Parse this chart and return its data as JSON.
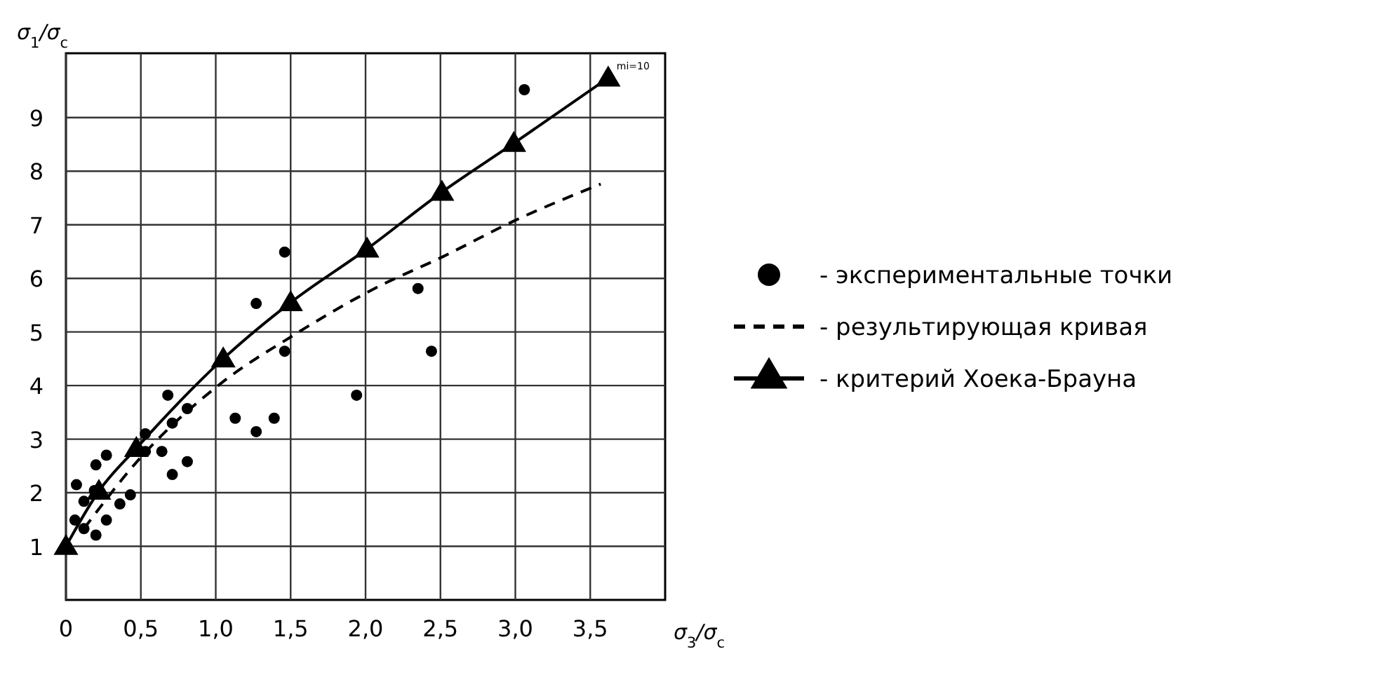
{
  "chart_data": {
    "type": "scatter",
    "xlabel": "σ$_{3}$/σ$_{c}$",
    "ylabel": "σ$_{1}$/σ$_{c}$",
    "xlim": [
      0,
      4.0
    ],
    "ylim": [
      0,
      10.2
    ],
    "xticks": [
      0,
      {
        "value": 0.5,
        "label": "0,5"
      },
      {
        "value": 1.0,
        "label": "1,0"
      },
      {
        "value": 1.5,
        "label": "1,5"
      },
      {
        "value": 2.0,
        "label": "2,0"
      },
      {
        "value": 2.5,
        "label": "2,5"
      },
      {
        "value": 3.0,
        "label": "3,0"
      },
      {
        "value": 3.5,
        "label": "3,5"
      }
    ],
    "yticks": [
      1,
      2,
      3,
      4,
      5,
      6,
      7,
      8,
      9
    ],
    "grid": true,
    "legend": "right",
    "series": [
      {
        "name": "- экспериментальные точки",
        "marker": "circle",
        "color": "#000000",
        "x": [
          0.07,
          0.12,
          0.06,
          0.12,
          0.2,
          0.27,
          0.19,
          0.2,
          0.27,
          0.36,
          0.43,
          0.53,
          0.53,
          0.64,
          0.68,
          0.71,
          0.71,
          0.81,
          0.81,
          1.13,
          1.27,
          1.39,
          1.46,
          1.94,
          2.44,
          1.46,
          1.27,
          2.35,
          3.06
        ],
        "values": [
          2.15,
          1.84,
          1.49,
          1.33,
          2.52,
          2.7,
          2.04,
          1.21,
          1.49,
          1.79,
          1.96,
          3.1,
          2.77,
          2.77,
          3.82,
          3.3,
          2.34,
          3.57,
          2.58,
          3.39,
          3.14,
          3.39,
          4.64,
          3.82,
          4.64,
          6.49,
          5.53,
          5.81,
          9.52
        ]
      },
      {
        "name": "- результирующая кривая",
        "type": "line",
        "marker": "none",
        "line_style": "dashed",
        "color": "#000000",
        "x": [
          0.12,
          0.49,
          1.03,
          1.52,
          2.06,
          2.52,
          2.99,
          3.57
        ],
        "values": [
          1.33,
          2.63,
          4.03,
          4.94,
          5.81,
          6.41,
          7.07,
          7.76
        ]
      },
      {
        "name": "- критерий Хоека-Брауна",
        "type": "line",
        "marker": "triangle",
        "line_style": "solid",
        "color": "#000000",
        "x": [
          0,
          0.22,
          0.47,
          1.05,
          1.5,
          2.01,
          2.51,
          2.99,
          3.62
        ],
        "values": [
          1.0,
          2.03,
          2.83,
          4.5,
          5.55,
          6.55,
          7.61,
          8.52,
          9.74
        ]
      }
    ],
    "annotations": [
      {
        "text": "mi=10",
        "x": 3.62,
        "y": 9.74
      }
    ]
  }
}
